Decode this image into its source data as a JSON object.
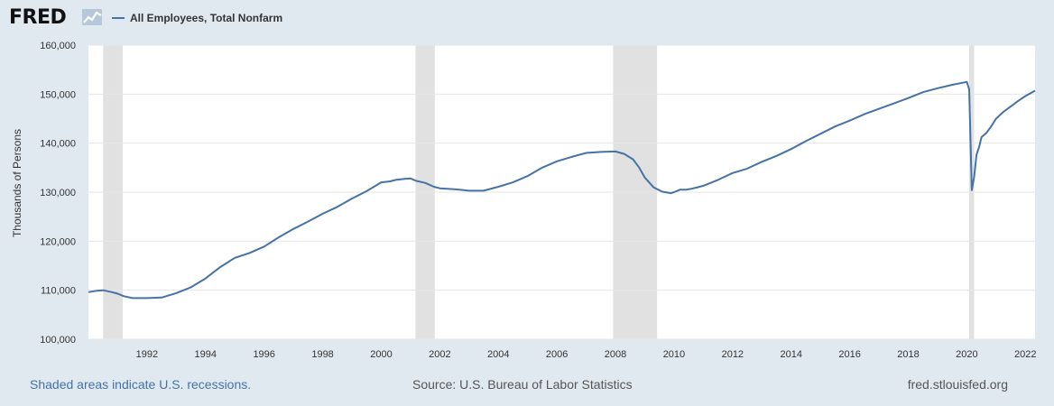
{
  "header": {
    "logo_text": "FRED",
    "logo_icon": "line-chart-icon",
    "legend_label": "All Employees, Total Nonfarm"
  },
  "footer": {
    "left": "Shaded areas indicate U.S. recessions.",
    "middle": "Source: U.S. Bureau of Labor Statistics",
    "right": "fred.stlouisfed.org"
  },
  "colors": {
    "series": "#4572a7",
    "recession": "#e1e1e1",
    "background": "#e1e9f0"
  },
  "chart_data": {
    "type": "line",
    "title": "",
    "xlabel": "",
    "ylabel": "Thousands of Persons",
    "xlim": [
      1990.0,
      2022.33
    ],
    "ylim": [
      100000,
      160000
    ],
    "x_ticks": [
      1992,
      1994,
      1996,
      1998,
      2000,
      2002,
      2004,
      2006,
      2008,
      2010,
      2012,
      2014,
      2016,
      2018,
      2020,
      2022
    ],
    "y_ticks": [
      100000,
      110000,
      120000,
      130000,
      140000,
      150000,
      160000
    ],
    "y_tick_labels": [
      "100,000",
      "110,000",
      "120,000",
      "130,000",
      "140,000",
      "150,000",
      "160,000"
    ],
    "grid": true,
    "legend_position": "top-left",
    "recessions": [
      [
        1990.5,
        1991.17
      ],
      [
        2001.17,
        2001.83
      ],
      [
        2007.92,
        2009.42
      ],
      [
        2020.08,
        2020.25
      ]
    ],
    "series": [
      {
        "name": "All Employees, Total Nonfarm",
        "x": [
          1990.0,
          1990.3,
          1990.5,
          1990.8,
          1991.0,
          1991.2,
          1991.5,
          1992.0,
          1992.5,
          1993.0,
          1993.5,
          1994.0,
          1994.5,
          1995.0,
          1995.5,
          1996.0,
          1996.5,
          1997.0,
          1997.5,
          1998.0,
          1998.5,
          1999.0,
          1999.5,
          2000.0,
          2000.3,
          2000.5,
          2000.8,
          2001.0,
          2001.2,
          2001.5,
          2001.8,
          2002.0,
          2002.5,
          2003.0,
          2003.5,
          2004.0,
          2004.5,
          2005.0,
          2005.5,
          2006.0,
          2006.5,
          2007.0,
          2007.5,
          2008.0,
          2008.3,
          2008.6,
          2008.8,
          2009.0,
          2009.3,
          2009.6,
          2009.9,
          2010.0,
          2010.2,
          2010.4,
          2010.6,
          2010.8,
          2011.0,
          2011.5,
          2012.0,
          2012.5,
          2013.0,
          2013.5,
          2014.0,
          2014.5,
          2015.0,
          2015.5,
          2016.0,
          2016.5,
          2017.0,
          2017.5,
          2018.0,
          2018.5,
          2019.0,
          2019.5,
          2020.0,
          2020.08,
          2020.17,
          2020.25,
          2020.33,
          2020.42,
          2020.5,
          2020.67,
          2020.83,
          2021.0,
          2021.25,
          2021.5,
          2021.75,
          2022.0,
          2022.33
        ],
        "values": [
          109600,
          109900,
          110000,
          109600,
          109300,
          108800,
          108400,
          108400,
          108500,
          109400,
          110600,
          112400,
          114700,
          116600,
          117600,
          118900,
          120800,
          122500,
          124000,
          125600,
          127000,
          128700,
          130200,
          132000,
          132200,
          132500,
          132700,
          132800,
          132300,
          131900,
          131100,
          130800,
          130600,
          130300,
          130300,
          131100,
          132000,
          133300,
          135000,
          136300,
          137200,
          138000,
          138200,
          138300,
          137800,
          136700,
          135100,
          133000,
          131000,
          130100,
          129800,
          130000,
          130500,
          130500,
          130700,
          131000,
          131300,
          132500,
          133900,
          134800,
          136200,
          137400,
          138800,
          140400,
          141900,
          143400,
          144600,
          145900,
          147000,
          148100,
          149200,
          150400,
          151200,
          151900,
          152500,
          151000,
          130400,
          133100,
          137600,
          139200,
          141200,
          142100,
          143400,
          145000,
          146400,
          147500,
          148600,
          149600,
          150700
        ]
      }
    ]
  }
}
